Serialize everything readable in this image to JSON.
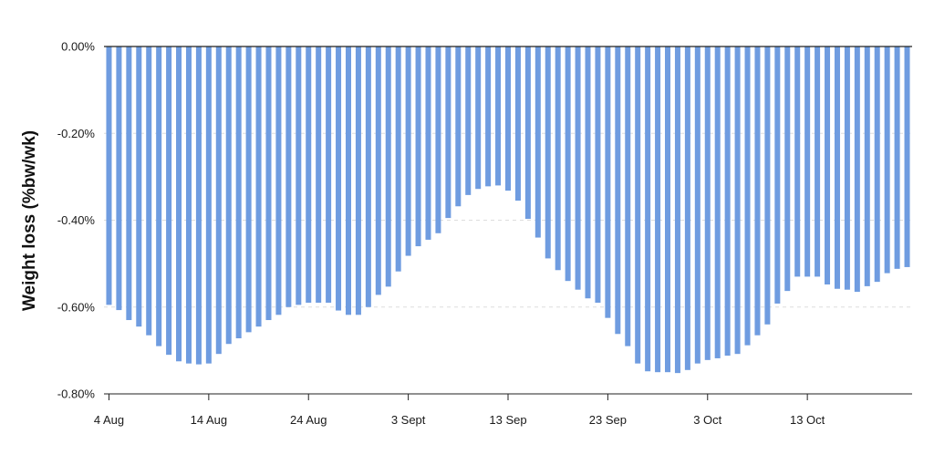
{
  "chart_data": {
    "type": "bar",
    "title": "",
    "xlabel": "",
    "ylabel": "Weight loss (%bw/wk)",
    "ylim": [
      -0.8,
      0.0
    ],
    "y_ticks": [
      {
        "value": 0.0,
        "label": "0.00%"
      },
      {
        "value": -0.2,
        "label": "-0.20%"
      },
      {
        "value": -0.4,
        "label": "-0.40%"
      },
      {
        "value": -0.6,
        "label": "-0.60%"
      },
      {
        "value": -0.8,
        "label": "-0.80%"
      }
    ],
    "x_ticks": [
      {
        "index": 0,
        "label": "4 Aug"
      },
      {
        "index": 10,
        "label": "14 Aug"
      },
      {
        "index": 20,
        "label": "24 Aug"
      },
      {
        "index": 30,
        "label": "3 Sept"
      },
      {
        "index": 40,
        "label": "13 Sep"
      },
      {
        "index": 50,
        "label": "23 Sep"
      },
      {
        "index": 60,
        "label": "3 Oct"
      },
      {
        "index": 70,
        "label": "13 Oct"
      }
    ],
    "start_date": "2024-08-04",
    "grid": "horizontal dashed",
    "bar_color": "#6f9ce0",
    "values": [
      -0.595,
      -0.607,
      -0.63,
      -0.645,
      -0.665,
      -0.69,
      -0.71,
      -0.725,
      -0.73,
      -0.732,
      -0.73,
      -0.708,
      -0.685,
      -0.672,
      -0.658,
      -0.645,
      -0.63,
      -0.618,
      -0.6,
      -0.595,
      -0.59,
      -0.59,
      -0.59,
      -0.608,
      -0.618,
      -0.618,
      -0.6,
      -0.572,
      -0.553,
      -0.518,
      -0.482,
      -0.46,
      -0.445,
      -0.43,
      -0.395,
      -0.368,
      -0.342,
      -0.328,
      -0.322,
      -0.32,
      -0.332,
      -0.355,
      -0.397,
      -0.44,
      -0.488,
      -0.515,
      -0.54,
      -0.56,
      -0.58,
      -0.59,
      -0.625,
      -0.662,
      -0.69,
      -0.73,
      -0.748,
      -0.75,
      -0.75,
      -0.752,
      -0.745,
      -0.73,
      -0.722,
      -0.718,
      -0.712,
      -0.708,
      -0.688,
      -0.665,
      -0.64,
      -0.592,
      -0.563,
      -0.53,
      -0.53,
      -0.53,
      -0.548,
      -0.558,
      -0.56,
      -0.565,
      -0.552,
      -0.542,
      -0.522,
      -0.512,
      -0.508
    ]
  }
}
